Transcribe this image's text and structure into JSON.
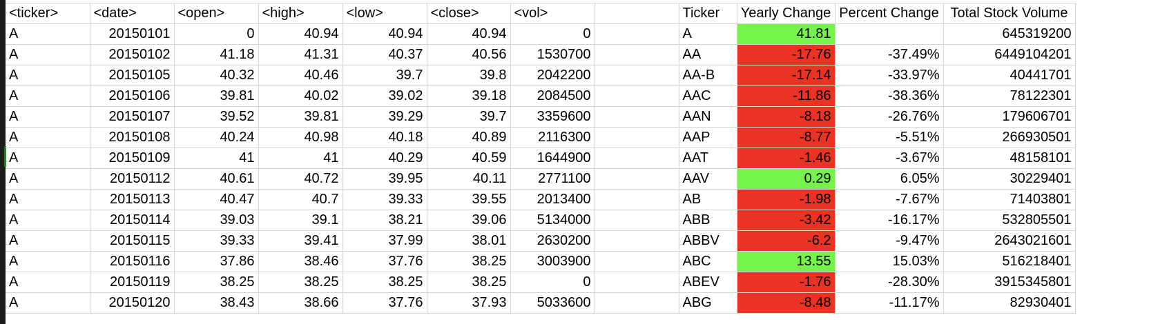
{
  "colors": {
    "positive_fill": "#75f34a",
    "negative_fill": "#ea3323",
    "gridline": "#d4d4d4"
  },
  "raw_headers": [
    "<ticker>",
    "<date>",
    "<open>",
    "<high>",
    "<low>",
    "<close>",
    "<vol>"
  ],
  "summary_headers": [
    "Ticker",
    "Yearly Change",
    "Percent Change",
    "Total Stock Volume"
  ],
  "raw_rows": [
    [
      "A",
      "20150101",
      "0",
      "40.94",
      "40.94",
      "40.94",
      "0"
    ],
    [
      "A",
      "20150102",
      "41.18",
      "41.31",
      "40.37",
      "40.56",
      "1530700"
    ],
    [
      "A",
      "20150105",
      "40.32",
      "40.46",
      "39.7",
      "39.8",
      "2042200"
    ],
    [
      "A",
      "20150106",
      "39.81",
      "40.02",
      "39.02",
      "39.18",
      "2084500"
    ],
    [
      "A",
      "20150107",
      "39.52",
      "39.81",
      "39.29",
      "39.7",
      "3359600"
    ],
    [
      "A",
      "20150108",
      "40.24",
      "40.98",
      "40.18",
      "40.89",
      "2116300"
    ],
    [
      "A",
      "20150109",
      "41",
      "41",
      "40.29",
      "40.59",
      "1644900"
    ],
    [
      "A",
      "20150112",
      "40.61",
      "40.72",
      "39.95",
      "40.11",
      "2771100"
    ],
    [
      "A",
      "20150113",
      "40.47",
      "40.7",
      "39.33",
      "39.55",
      "2013400"
    ],
    [
      "A",
      "20150114",
      "39.03",
      "39.1",
      "38.21",
      "39.06",
      "5134000"
    ],
    [
      "A",
      "20150115",
      "39.33",
      "39.41",
      "37.99",
      "38.01",
      "2630200"
    ],
    [
      "A",
      "20150116",
      "37.86",
      "38.46",
      "37.76",
      "38.25",
      "3003900"
    ],
    [
      "A",
      "20150119",
      "38.25",
      "38.25",
      "38.25",
      "38.25",
      "0"
    ],
    [
      "A",
      "20150120",
      "38.43",
      "38.66",
      "37.76",
      "37.93",
      "5033600"
    ]
  ],
  "summary_rows": [
    {
      "ticker": "A",
      "yearly_change": "41.81",
      "percent_change": "",
      "total_volume": "645319200",
      "status": "positive"
    },
    {
      "ticker": "AA",
      "yearly_change": "-17.76",
      "percent_change": "-37.49%",
      "total_volume": "6449104201",
      "status": "negative"
    },
    {
      "ticker": "AA-B",
      "yearly_change": "-17.14",
      "percent_change": "-33.97%",
      "total_volume": "40441701",
      "status": "negative"
    },
    {
      "ticker": "AAC",
      "yearly_change": "-11.86",
      "percent_change": "-38.36%",
      "total_volume": "78122301",
      "status": "negative"
    },
    {
      "ticker": "AAN",
      "yearly_change": "-8.18",
      "percent_change": "-26.76%",
      "total_volume": "179606701",
      "status": "negative"
    },
    {
      "ticker": "AAP",
      "yearly_change": "-8.77",
      "percent_change": "-5.51%",
      "total_volume": "266930501",
      "status": "negative"
    },
    {
      "ticker": "AAT",
      "yearly_change": "-1.46",
      "percent_change": "-3.67%",
      "total_volume": "48158101",
      "status": "negative"
    },
    {
      "ticker": "AAV",
      "yearly_change": "0.29",
      "percent_change": "6.05%",
      "total_volume": "30229401",
      "status": "positive"
    },
    {
      "ticker": "AB",
      "yearly_change": "-1.98",
      "percent_change": "-7.67%",
      "total_volume": "71403801",
      "status": "negative"
    },
    {
      "ticker": "ABB",
      "yearly_change": "-3.42",
      "percent_change": "-16.17%",
      "total_volume": "532805501",
      "status": "negative"
    },
    {
      "ticker": "ABBV",
      "yearly_change": "-6.2",
      "percent_change": "-9.47%",
      "total_volume": "2643021601",
      "status": "negative"
    },
    {
      "ticker": "ABC",
      "yearly_change": "13.55",
      "percent_change": "15.03%",
      "total_volume": "516218401",
      "status": "positive"
    },
    {
      "ticker": "ABEV",
      "yearly_change": "-1.76",
      "percent_change": "-28.30%",
      "total_volume": "3915345801",
      "status": "negative"
    },
    {
      "ticker": "ABG",
      "yearly_change": "-8.48",
      "percent_change": "-11.17%",
      "total_volume": "82930401",
      "status": "negative"
    }
  ]
}
